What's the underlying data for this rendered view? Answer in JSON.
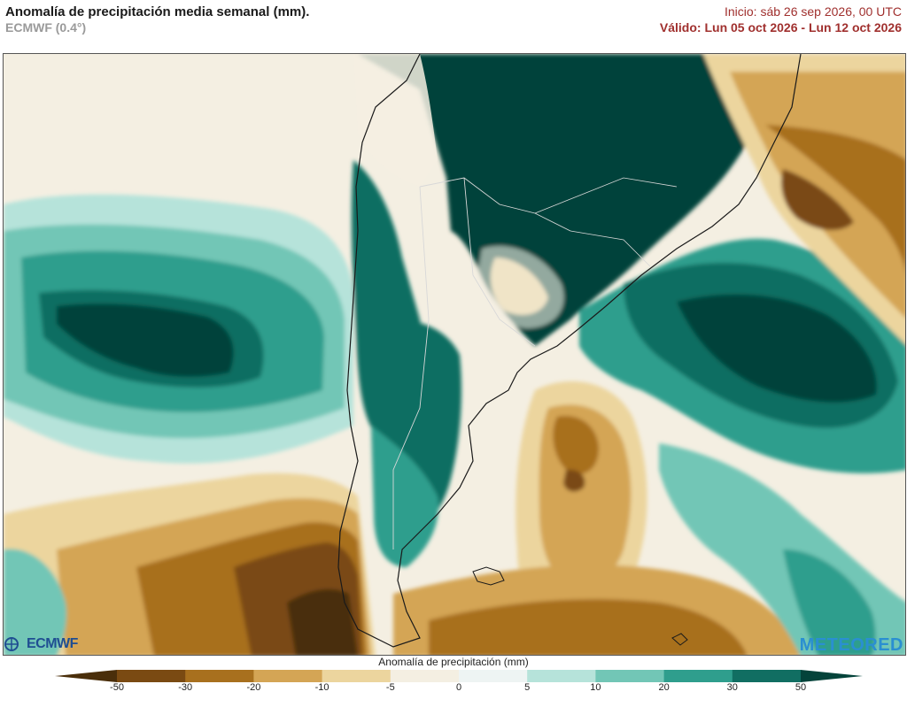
{
  "header": {
    "title": "Anomalía de precipitación media semanal (mm).",
    "model": "ECMWF (0.4°)",
    "init": "Inicio:  sáb 26 sep 2026, 00 UTC",
    "valid": "Válido: Lun 05 oct 2026 - Lun 12 oct 2026"
  },
  "logos": {
    "left": "ECMWF",
    "right": "METEORED"
  },
  "colorbar": {
    "label": "Anomalía de precipitación (mm)",
    "ticks": [
      "-50",
      "-30",
      "-20",
      "-10",
      "-5",
      "0",
      "5",
      "10",
      "20",
      "30",
      "50"
    ],
    "colors": [
      "#4a2e0a",
      "#7a4a12",
      "#a8701e",
      "#d4a555",
      "#ecd59e",
      "#f4efe2",
      "#eef4f3",
      "#b6e3da",
      "#72c6b6",
      "#2f9e8d",
      "#116e62",
      "#04433a"
    ]
  },
  "map": {
    "region": "South America",
    "colors": {
      "brown_dark": "#4a2e0a",
      "brown": "#7a4a12",
      "tan": "#a8701e",
      "sand": "#d4a555",
      "cream": "#ecd59e",
      "neutral": "#f4efe2",
      "teal_pale": "#b6e3da",
      "teal_light": "#72c6b6",
      "teal": "#2f9e8d",
      "teal_dark": "#116e62",
      "teal_deep": "#04433a"
    }
  }
}
